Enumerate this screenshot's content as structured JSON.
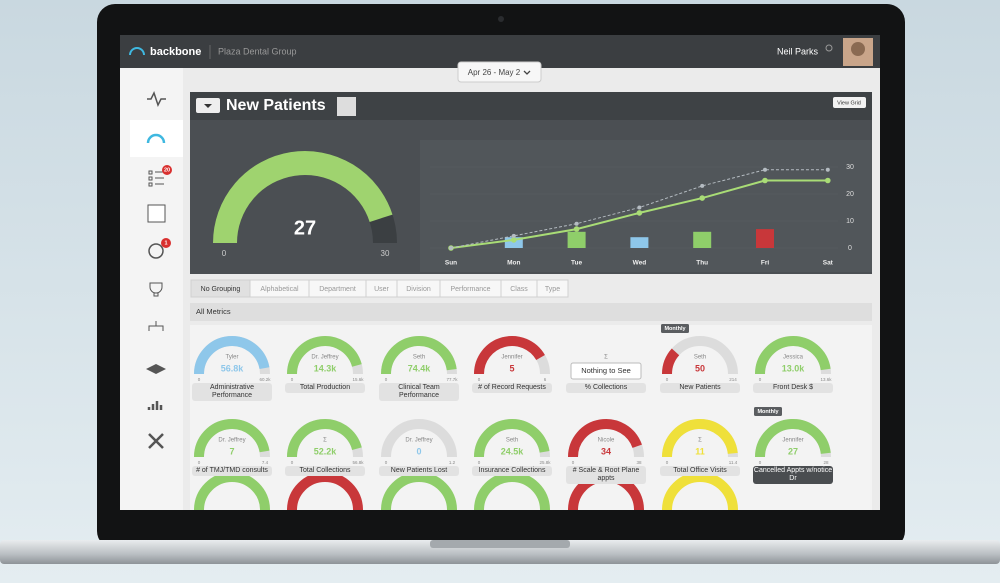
{
  "app": {
    "logo": "backbone",
    "org": "Plaza Dental Group",
    "user": "Neil Parks",
    "date_range": "Apr 26 - May 2"
  },
  "sidebar_badges": [
    20,
    1
  ],
  "panel": {
    "title": "New Patients",
    "button": "View Grid",
    "gauge": {
      "value": 27,
      "min": 0,
      "max": 30,
      "color": "#9fd36f"
    }
  },
  "chart_data": {
    "type": "line",
    "categories": [
      "Sun",
      "Mon",
      "Tue",
      "Wed",
      "Thu",
      "Fri",
      "Sat"
    ],
    "series": [
      {
        "color": "#a9dc76",
        "style": "solid",
        "values": [
          0,
          3,
          7,
          13,
          18.5,
          25,
          25
        ]
      },
      {
        "color": "#b5bcc2",
        "style": "dashed",
        "values": [
          0,
          4.5,
          9,
          15,
          23,
          29,
          29
        ]
      }
    ],
    "bars": {
      "values": [
        null,
        4,
        6,
        4,
        6,
        7,
        null
      ],
      "colors": [
        "#8ec7ea",
        "#8ec7ea",
        "#8fce6a",
        "#8ec7ea",
        "#8fce6a",
        "#c8373a",
        "#8ec7ea"
      ]
    },
    "ylim": [
      0,
      30
    ],
    "yticks": [
      0,
      10,
      20,
      30
    ]
  },
  "grouping_tabs": [
    "No Grouping",
    "Alphabetical",
    "Department",
    "User",
    "Division",
    "Performance",
    "Class",
    "Type"
  ],
  "active_tab": 0,
  "section": "All Metrics",
  "metrics": [
    {
      "person": "Tyler",
      "value": 56800,
      "value_label": "56.8k",
      "min": 0,
      "max": 60200,
      "max_label": "60.2k",
      "title": "Administrative Performance",
      "color": "#8ec7ea"
    },
    {
      "person": "Dr. Jeffrey",
      "value": 14300,
      "value_label": "14.3k",
      "min": 0,
      "max": 15600,
      "max_label": "15.6k",
      "title": "Total Production",
      "color": "#8fce6a"
    },
    {
      "person": "Seth",
      "value": 74400,
      "value_label": "74.4k",
      "min": 0,
      "max": 77700,
      "max_label": "77.7k",
      "title": "Clinical Team Performance",
      "color": "#8fce6a"
    },
    {
      "person": "Jennifer",
      "value": 5,
      "min": 0,
      "max": 6,
      "title": "# of Record Requests",
      "color": "#c8373a"
    },
    {
      "person": "Σ",
      "button": "Nothing to See",
      "title": "% Collections"
    },
    {
      "person": "Seth",
      "value": 50,
      "min": 0,
      "max": 214,
      "title": "New Patients",
      "color": "#c8373a",
      "badge": "Monthly"
    },
    {
      "person": "Jessica",
      "value": 13000,
      "value_label": "13.0k",
      "min": 0,
      "max": 13600,
      "max_label": "13.6k",
      "title": "Front Desk $",
      "color": "#8fce6a"
    },
    {
      "person": "Dr. Jeffrey",
      "value": 7,
      "min": 0,
      "max": 7.4,
      "title": "# of TMJ/TMD consults",
      "color": "#8fce6a"
    },
    {
      "person": "Σ",
      "value": 52200,
      "value_label": "52.2k",
      "min": 0,
      "max": 56800,
      "max_label": "56.8k",
      "title": "Total Collections",
      "color": "#8fce6a"
    },
    {
      "person": "Dr. Jeffrey",
      "value": 0,
      "min": 0,
      "max": 1.2,
      "title": "New Patients Lost",
      "color": "#8ec7ea"
    },
    {
      "person": "Seth",
      "value": 24500,
      "value_label": "24.5k",
      "min": 0,
      "max": 25800,
      "max_label": "25.8k",
      "title": "Insurance Collections",
      "color": "#8fce6a"
    },
    {
      "person": "Nicole",
      "value": 34,
      "min": 0,
      "max": 38,
      "title": "# Scale & Root Plane appts",
      "color": "#c8373a"
    },
    {
      "person": "Σ",
      "value": 11,
      "min": 0,
      "max": 11.4,
      "title": "Total Office Visits",
      "color": "#efe03a"
    },
    {
      "person": "Jennifer",
      "value": 27,
      "min": 0,
      "max": 28,
      "title": "Cancelled Appts w/notice Dr",
      "color": "#8fce6a",
      "badge": "Monthly",
      "selected": true
    }
  ]
}
